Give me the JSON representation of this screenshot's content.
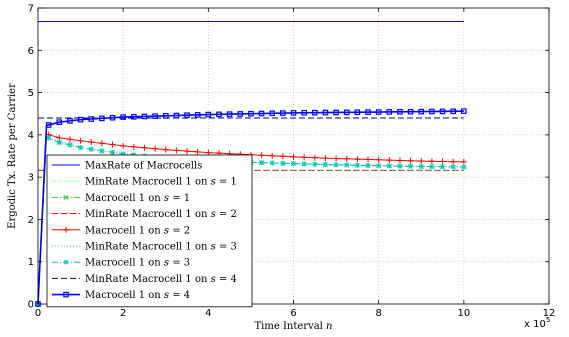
{
  "chart_data": {
    "type": "line",
    "title": "",
    "xlabel": "Time Interval n",
    "ylabel": "Ergodic Tx. Rate per Carrier",
    "x_exponent_label": "x 10",
    "x_exponent_power": "5",
    "xlim": [
      0,
      12
    ],
    "ylim": [
      0,
      7
    ],
    "xticks": [
      "0",
      "2",
      "4",
      "6",
      "8",
      "10",
      "12"
    ],
    "yticks": [
      "0",
      "1",
      "2",
      "3",
      "4",
      "5",
      "6",
      "7"
    ],
    "grid": true,
    "legend_position": "lower-left",
    "series": [
      {
        "name": "MaxRate of Macrocells",
        "color": "#0000ff",
        "dash": "solid",
        "marker": "none",
        "x": [
          0,
          10
        ],
        "y": [
          6.68,
          6.68
        ]
      },
      {
        "name": "MinRate Macrocell 1 on s = 1",
        "color": "#33ff33",
        "dash": "dotted",
        "marker": "none",
        "x": [
          0,
          10
        ],
        "y": [
          3.16,
          3.16
        ]
      },
      {
        "name": "Macrocell 1 on s = 1",
        "color": "#33cc33",
        "dash": "dashdot",
        "marker": "x",
        "x": [
          0,
          0.2,
          0.5,
          1,
          1.5,
          2,
          3,
          4,
          5,
          6,
          7,
          8,
          9,
          10
        ],
        "y": [
          0,
          3.95,
          3.82,
          3.7,
          3.62,
          3.55,
          3.45,
          3.4,
          3.35,
          3.32,
          3.29,
          3.27,
          3.25,
          3.24
        ]
      },
      {
        "name": "MinRate Macrocell 1 on s = 2",
        "color": "#ff0000",
        "dash": "dashed",
        "marker": "none",
        "x": [
          0,
          10
        ],
        "y": [
          3.16,
          3.16
        ]
      },
      {
        "name": "Macrocell 1 on s = 2",
        "color": "#ff0000",
        "dash": "solid",
        "marker": "+",
        "x": [
          0,
          0.2,
          0.5,
          1,
          1.5,
          2,
          3,
          4,
          5,
          6,
          7,
          8,
          9,
          10
        ],
        "y": [
          0,
          4.02,
          3.93,
          3.86,
          3.8,
          3.74,
          3.65,
          3.58,
          3.53,
          3.48,
          3.44,
          3.41,
          3.38,
          3.36
        ]
      },
      {
        "name": "MinRate Macrocell 1 on s = 3",
        "color": "#33cccc",
        "dash": "dotted",
        "marker": "none",
        "x": [
          0,
          10
        ],
        "y": [
          3.16,
          3.16
        ]
      },
      {
        "name": "Macrocell 1 on s = 3",
        "color": "#00cccc",
        "dash": "dashdot",
        "marker": "*",
        "x": [
          0,
          0.2,
          0.5,
          1,
          1.5,
          2,
          3,
          4,
          5,
          6,
          7,
          8,
          9,
          10
        ],
        "y": [
          0,
          3.95,
          3.82,
          3.7,
          3.62,
          3.55,
          3.45,
          3.4,
          3.35,
          3.32,
          3.29,
          3.27,
          3.25,
          3.24
        ]
      },
      {
        "name": "MinRate Macrocell 1 on s = 4",
        "color": "#00008b",
        "dash": "dashed",
        "marker": "none",
        "x": [
          0,
          10
        ],
        "y": [
          4.4,
          4.4
        ]
      },
      {
        "name": "Macrocell 1 on s = 4",
        "color": "#0000ff",
        "dash": "solid",
        "marker": "square",
        "x": [
          0,
          0.2,
          0.5,
          1,
          1.5,
          2,
          3,
          4,
          5,
          6,
          7,
          8,
          9,
          10
        ],
        "y": [
          0,
          4.22,
          4.3,
          4.36,
          4.39,
          4.42,
          4.45,
          4.48,
          4.5,
          4.52,
          4.53,
          4.54,
          4.55,
          4.56
        ]
      }
    ],
    "legend": [
      {
        "label_pre": "MaxRate of Macrocells",
        "label_var": "",
        "label_post": ""
      },
      {
        "label_pre": "MinRate Macrocell 1 on ",
        "label_var": "s",
        "label_post": " = 1"
      },
      {
        "label_pre": "Macrocell 1 on ",
        "label_var": "s",
        "label_post": " = 1"
      },
      {
        "label_pre": "MinRate Macrocell 1 on ",
        "label_var": "s",
        "label_post": " = 2"
      },
      {
        "label_pre": "Macrocell 1 on ",
        "label_var": "s",
        "label_post": " = 2"
      },
      {
        "label_pre": "MinRate Macrocell 1 on ",
        "label_var": "s",
        "label_post": " = 3"
      },
      {
        "label_pre": "Macrocell 1 on ",
        "label_var": "s",
        "label_post": " = 3"
      },
      {
        "label_pre": "MinRate Macrocell 1 on ",
        "label_var": "s",
        "label_post": " = 4"
      },
      {
        "label_pre": "Macrocell 1 on ",
        "label_var": "s",
        "label_post": " = 4"
      }
    ]
  }
}
